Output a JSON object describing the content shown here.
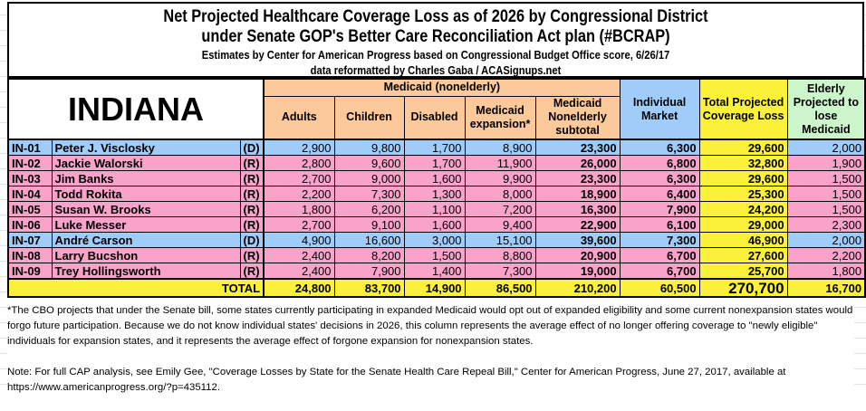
{
  "title": {
    "line1": "Net Projected Healthcare Coverage Loss as of 2026 by Congressional District",
    "line2": "under Senate GOP's Better Care Reconciliation Act plan (#BCRAP)",
    "line3": "Estimates by Center for American Progress based on Congressional Budget Office score, 6/26/17",
    "line4": "data reformatted by Charles Gaba / ACASignups.net"
  },
  "state": "INDIANA",
  "headers": {
    "medicaid_group": "Medicaid (nonelderly)",
    "adults": "Adults",
    "children": "Children",
    "disabled": "Disabled",
    "expansion": "Medicaid expansion*",
    "subtotal": "Medicaid Nonelderly subtotal",
    "individual": "Individual Market",
    "total": "Total Projected Coverage Loss",
    "elderly": "Elderly Projected to lose Medicaid"
  },
  "colors": {
    "democrat": "#9fccf8",
    "republican": "#f9a3cb",
    "medicaid_header": "#fcc99b",
    "total": "#fbf13b",
    "elderly_header": "#ccf5cc"
  },
  "rows": [
    {
      "district": "IN-01",
      "name": "Peter J. Visclosky",
      "party": "(D)",
      "adults": "2,900",
      "children": "9,800",
      "disabled": "1,700",
      "expansion": "8,900",
      "subtotal": "23,300",
      "individual": "6,300",
      "total": "29,600",
      "elderly": "2,000"
    },
    {
      "district": "IN-02",
      "name": "Jackie Walorski",
      "party": "(R)",
      "adults": "2,800",
      "children": "9,600",
      "disabled": "1,700",
      "expansion": "11,900",
      "subtotal": "26,000",
      "individual": "6,800",
      "total": "32,800",
      "elderly": "1,900"
    },
    {
      "district": "IN-03",
      "name": "Jim Banks",
      "party": "(R)",
      "adults": "2,700",
      "children": "9,000",
      "disabled": "1,600",
      "expansion": "9,900",
      "subtotal": "23,300",
      "individual": "6,300",
      "total": "29,600",
      "elderly": "1,500"
    },
    {
      "district": "IN-04",
      "name": "Todd Rokita",
      "party": "(R)",
      "adults": "2,200",
      "children": "7,300",
      "disabled": "1,300",
      "expansion": "8,000",
      "subtotal": "18,900",
      "individual": "6,400",
      "total": "25,300",
      "elderly": "1,500"
    },
    {
      "district": "IN-05",
      "name": "Susan W. Brooks",
      "party": "(R)",
      "adults": "1,800",
      "children": "6,200",
      "disabled": "1,100",
      "expansion": "7,200",
      "subtotal": "16,300",
      "individual": "7,900",
      "total": "24,200",
      "elderly": "1,500"
    },
    {
      "district": "IN-06",
      "name": "Luke Messer",
      "party": "(R)",
      "adults": "2,700",
      "children": "9,100",
      "disabled": "1,600",
      "expansion": "9,400",
      "subtotal": "22,900",
      "individual": "6,100",
      "total": "29,000",
      "elderly": "2,300"
    },
    {
      "district": "IN-07",
      "name": "André Carson",
      "party": "(D)",
      "adults": "4,900",
      "children": "16,600",
      "disabled": "3,000",
      "expansion": "15,100",
      "subtotal": "39,600",
      "individual": "7,300",
      "total": "46,900",
      "elderly": "2,000"
    },
    {
      "district": "IN-08",
      "name": "Larry Bucshon",
      "party": "(R)",
      "adults": "2,400",
      "children": "8,200",
      "disabled": "1,500",
      "expansion": "8,800",
      "subtotal": "20,900",
      "individual": "6,700",
      "total": "27,600",
      "elderly": "2,200"
    },
    {
      "district": "IN-09",
      "name": "Trey Hollingsworth",
      "party": "(R)",
      "adults": "2,400",
      "children": "7,900",
      "disabled": "1,400",
      "expansion": "7,300",
      "subtotal": "19,000",
      "individual": "6,700",
      "total": "25,700",
      "elderly": "1,800"
    }
  ],
  "totals": {
    "label": "TOTAL",
    "adults": "24,800",
    "children": "83,700",
    "disabled": "14,900",
    "expansion": "86,500",
    "subtotal": "210,200",
    "individual": "60,500",
    "total": "270,700",
    "elderly": "16,700"
  },
  "notes": {
    "footnote": "*The CBO projects that under the Senate bill, some states currently participating in expanded Medicaid would opt out of expanded eligibility and some current nonexpansion states would forgo future participation. Because we do not know individual states' decisions in 2026, this column represents the average effect of no longer offering coverage to \"newly eligible\" individuals for expansion states, and it represents the average effect of forgone expansion for nonexpansion states.",
    "source": "Note: For full CAP analysis, see Emily Gee, \"Coverage Losses by State for the Senate Health Care Repeal Bill,\" Center for American Progress, June 27, 2017, available at https://www.americanprogress.org/?p=435112."
  }
}
